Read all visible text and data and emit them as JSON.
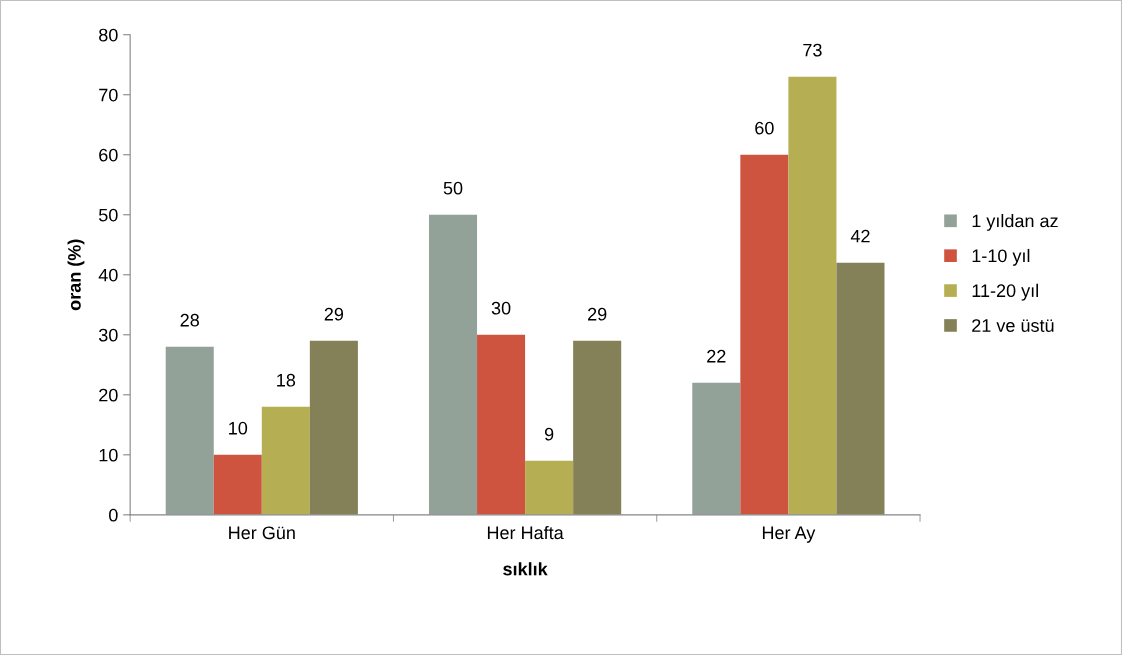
{
  "chart_data": {
    "type": "bar",
    "xlabel": "sıklık",
    "ylabel": "oran (%)",
    "categories": [
      "Her Gün",
      "Her Hafta",
      "Her Ay"
    ],
    "series": [
      {
        "name": "1 yıldan az",
        "color": "#93a299",
        "values": [
          28,
          50,
          22
        ]
      },
      {
        "name": "1-10 yıl",
        "color": "#cf543f",
        "values": [
          10,
          30,
          60
        ]
      },
      {
        "name": "11-20 yıl",
        "color": "#b5ae53",
        "values": [
          18,
          9,
          73
        ]
      },
      {
        "name": "21 ve üstü",
        "color": "#848058",
        "values": [
          29,
          29,
          42
        ]
      }
    ],
    "ylim": [
      0,
      80
    ],
    "yticks": [
      0,
      10,
      20,
      30,
      40,
      50,
      60,
      70,
      80
    ],
    "grid": false,
    "legend": "right",
    "data_labels": true
  }
}
